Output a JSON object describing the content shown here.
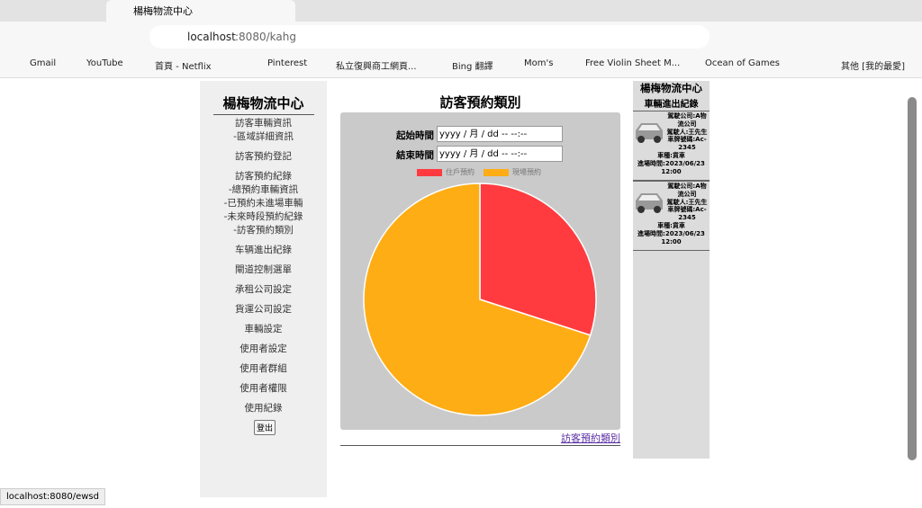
{
  "browser": {
    "tab_title": "楊梅物流中心",
    "url_host": "localhost",
    "url_rest": ":8080/kahg",
    "bookmarks": [
      "Gmail",
      "YouTube",
      "首頁 - Netflix",
      "Pinterest",
      "私立復興商工網頁...",
      "Bing 翻譯",
      "Mom's",
      "Free Violin Sheet M...",
      "Ocean of Games",
      "其他 [我的最愛]"
    ],
    "status": "localhost:8080/ewsd"
  },
  "sidebar": {
    "title": "楊梅物流中心",
    "groups": [
      [
        "訪客車輛資訊",
        "-區域詳細資訊"
      ],
      [
        "訪客預約登記"
      ],
      [
        "訪客預約紀錄",
        "-總預約車輛資訊",
        "-已預約未進場車輛",
        "-未來時段預約紀錄",
        "-訪客預約類別"
      ],
      [
        "车辆進出紀錄"
      ],
      [
        "閘道控制選單"
      ],
      [
        "承租公司設定"
      ],
      [
        "貨運公司設定"
      ],
      [
        "車輛設定"
      ],
      [
        "使用者設定"
      ],
      [
        "使用者群組"
      ],
      [
        "使用者權限"
      ],
      [
        "使用紀錄"
      ]
    ],
    "logout": "登出"
  },
  "form": {
    "start_label": "起始時間",
    "end_label": "結束時間",
    "placeholder": "yyyy / 月 / dd  -- --:--"
  },
  "chart_data": {
    "type": "pie",
    "title": "訪客預約類別",
    "categories": [
      "住戶預約",
      "現場預約"
    ],
    "values": [
      30,
      70
    ],
    "colors": [
      "#ff3b3f",
      "#ffad15"
    ],
    "legend": "top"
  },
  "link": "訪客預約類別",
  "records_panel": {
    "title": "楊梅物流中心",
    "subtitle": "車輛進出紀錄",
    "records": [
      [
        "駕駛公司:A物流公司",
        "駕駛人:王先生",
        "車牌號碼:Ac-2345",
        "車種:貨車",
        "進場時間:2023/06/23 12:00"
      ],
      [
        "駕駛公司:A物流公司",
        "駕駛人:王先生",
        "車牌號碼:Ac-2345",
        "車種:貨車",
        "進場時間:2023/06/23 12:00"
      ]
    ]
  }
}
